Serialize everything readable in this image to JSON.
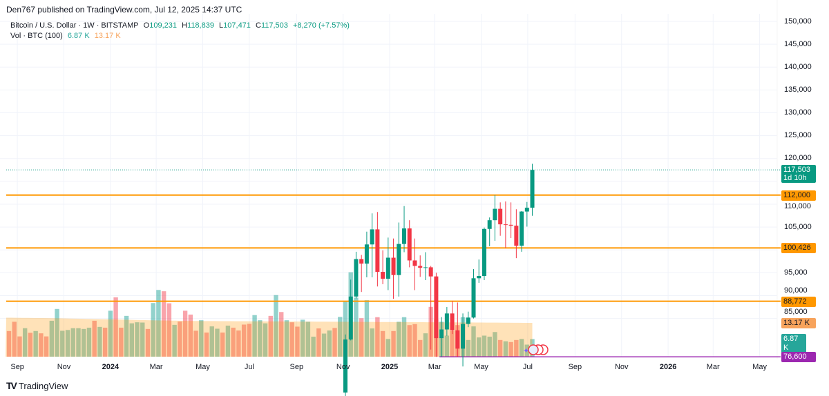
{
  "header": {
    "published": "Den767 published on TradingView.com, Jul 12, 2025 14:37 UTC"
  },
  "legend": {
    "symbol": "Bitcoin / U.S. Dollar · 1W · BITSTAMP",
    "o_label": "O",
    "o": "109,231",
    "h_label": "H",
    "h": "118,839",
    "l_label": "L",
    "l": "107,471",
    "c_label": "C",
    "c": "117,503",
    "change": "+8,270 (+7.57%)",
    "vol_title": "Vol · BTC (100)",
    "vol": "6.87 K",
    "vol_ma": "13.17 K"
  },
  "colors": {
    "up": "#089981",
    "down": "#f23645",
    "level": "#ff9800",
    "support": "#9c27b0",
    "vol_ma": "#f7a35c"
  },
  "price_axis": {
    "ticks": [
      "150,000",
      "145,000",
      "140,000",
      "135,000",
      "130,000",
      "125,000",
      "120,000",
      "110,000",
      "105,000",
      "95,000",
      "90,000",
      "85,000"
    ],
    "tick_values": [
      150000,
      145000,
      140000,
      135000,
      130000,
      125000,
      120000,
      110000,
      105000,
      95000,
      90000,
      85000
    ],
    "current_price": "117,503",
    "current_price_value": 117503,
    "countdown": "1d 10h",
    "levels": [
      {
        "label": "112,000",
        "value": 112000
      },
      {
        "label": "100,426",
        "value": 100426
      },
      {
        "label": "88,772",
        "value": 88772
      }
    ],
    "support": {
      "label": "76,600",
      "value": 76600
    },
    "vol_ma_label": "13.17 K",
    "vol_label": "6.87 K"
  },
  "time_axis": {
    "labels": [
      {
        "t": "Sep",
        "d": "2023-09-01"
      },
      {
        "t": "Nov",
        "d": "2023-11-01"
      },
      {
        "t": "2024",
        "d": "2024-01-01",
        "year": true
      },
      {
        "t": "Mar",
        "d": "2024-03-01"
      },
      {
        "t": "May",
        "d": "2024-05-01"
      },
      {
        "t": "Jul",
        "d": "2024-07-01"
      },
      {
        "t": "Sep",
        "d": "2024-09-01"
      },
      {
        "t": "Nov",
        "d": "2024-11-01"
      },
      {
        "t": "2025",
        "d": "2025-01-01",
        "year": true
      },
      {
        "t": "Mar",
        "d": "2025-03-01"
      },
      {
        "t": "May",
        "d": "2025-05-01"
      },
      {
        "t": "Jul",
        "d": "2025-07-01"
      },
      {
        "t": "Sep",
        "d": "2025-09-01"
      },
      {
        "t": "Nov",
        "d": "2025-11-01"
      },
      {
        "t": "2026",
        "d": "2026-01-01",
        "year": true
      },
      {
        "t": "Mar",
        "d": "2026-03-01"
      },
      {
        "t": "May",
        "d": "2026-05-01"
      }
    ]
  },
  "chart_data": {
    "type": "candlestick",
    "interval": "1W",
    "first_week": "2023-08-21",
    "volume_k": [
      10,
      13.6,
      7.9,
      11.1,
      9.3,
      10,
      9.1,
      7.9,
      14,
      18.6,
      10.1,
      10.4,
      11.1,
      11.1,
      10.8,
      11.3,
      14,
      11.6,
      11.3,
      17.9,
      23.1,
      11.3,
      15.9,
      13,
      13.4,
      13.3,
      10.8,
      20.9,
      26,
      25.5,
      20.8,
      12.4,
      13.7,
      17.9,
      16.4,
      10.1,
      14.2,
      9.4,
      11.8,
      10.9,
      9.4,
      12.1,
      11.3,
      10.2,
      12.5,
      12.8,
      16.2,
      14.2,
      12.99,
      15.9,
      24,
      17.4,
      14.2,
      13.4,
      11.7,
      14.4,
      13.6,
      7.8,
      11,
      9,
      10.2,
      11.2,
      15.5,
      21.7,
      32.9,
      23,
      15,
      22,
      11,
      15.4,
      10,
      6.9,
      10,
      13.6,
      15.4,
      12.3,
      12.7,
      6.5,
      9.1,
      19.4,
      14.5,
      13.6,
      8.2,
      10,
      12.3,
      15.4,
      6.5,
      11.8,
      7.5,
      8.2,
      7.8,
      9.6,
      6.5,
      6,
      5.7,
      6.5,
      6.9,
      4.7,
      6.87
    ],
    "volume_up": [
      0,
      0,
      0,
      1,
      0,
      1,
      0,
      0,
      1,
      1,
      1,
      1,
      1,
      1,
      1,
      1,
      0,
      1,
      0,
      1,
      0,
      0,
      1,
      1,
      1,
      1,
      0,
      1,
      1,
      0,
      0,
      1,
      0,
      0,
      0,
      0,
      1,
      0,
      1,
      1,
      0,
      1,
      0,
      0,
      0,
      0,
      1,
      1,
      1,
      0,
      1,
      0,
      1,
      0,
      0,
      1,
      1,
      1,
      0,
      1,
      1,
      0,
      1,
      1,
      1,
      1,
      0,
      1,
      1,
      0,
      0,
      1,
      0,
      1,
      1,
      0,
      0,
      0,
      1,
      0,
      0,
      1,
      1,
      0,
      0,
      1,
      1,
      1,
      1,
      1,
      1,
      1,
      0,
      1,
      0,
      0,
      1,
      1,
      1
    ],
    "volume_ma_k": [
      15.2,
      15,
      14.6,
      14.2,
      13.9,
      13.8,
      13.7,
      13.6,
      13.5,
      13.4,
      13.3,
      13.17
    ],
    "candles_start_index": 63,
    "ohlc": [
      [
        68800,
        81500,
        66800,
        80400
      ],
      [
        80400,
        93500,
        80200,
        89800
      ],
      [
        89800,
        99600,
        89400,
        98000
      ],
      [
        98000,
        98900,
        90800,
        97000
      ],
      [
        97000,
        104000,
        94000,
        101200
      ],
      [
        101200,
        108000,
        94000,
        104500
      ],
      [
        104500,
        108300,
        92000,
        95200
      ],
      [
        95200,
        99900,
        92500,
        93700
      ],
      [
        93700,
        102700,
        91200,
        98300
      ],
      [
        98300,
        102500,
        89300,
        94500
      ],
      [
        94500,
        106000,
        89800,
        101300
      ],
      [
        101300,
        109600,
        99500,
        104700
      ],
      [
        104700,
        106500,
        96200,
        97700
      ],
      [
        97700,
        102500,
        91200,
        96500
      ],
      [
        96500,
        98800,
        94100,
        96100
      ],
      [
        96100,
        99500,
        93400,
        96200
      ],
      [
        96200,
        96500,
        78200,
        94200
      ],
      [
        94200,
        95000,
        76600,
        80700
      ],
      [
        80700,
        85300,
        76600,
        82600
      ],
      [
        82600,
        87500,
        81200,
        86100
      ],
      [
        86100,
        88800,
        81600,
        82400
      ],
      [
        82400,
        88500,
        76600,
        78400
      ],
      [
        78400,
        86100,
        74500,
        83800
      ],
      [
        83800,
        86500,
        83100,
        85200
      ],
      [
        85200,
        95800,
        85000,
        93800
      ],
      [
        93800,
        97900,
        92800,
        94300
      ],
      [
        94300,
        104900,
        93400,
        104600
      ],
      [
        104600,
        107100,
        100800,
        106500
      ],
      [
        106500,
        112000,
        102000,
        109000
      ],
      [
        109000,
        110400,
        103100,
        105600
      ],
      [
        105600,
        110600,
        100400,
        105500
      ],
      [
        105500,
        110400,
        102600,
        105300
      ],
      [
        105300,
        108900,
        98200,
        100900
      ],
      [
        100900,
        108500,
        99600,
        108400
      ],
      [
        108400,
        110500,
        105100,
        109231
      ],
      [
        109231,
        118839,
        107471,
        117503
      ]
    ]
  },
  "footer": {
    "brand": "TradingView"
  }
}
